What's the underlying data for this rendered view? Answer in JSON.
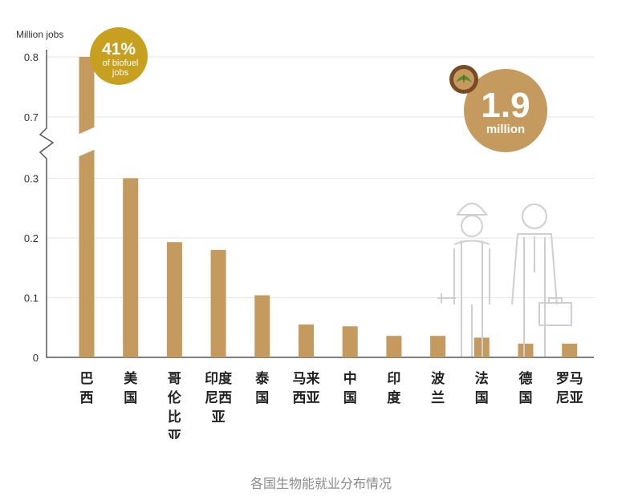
{
  "chart_data": {
    "type": "bar",
    "ylabel": "Million jobs",
    "y_ticks": [
      "0.8",
      "0.7",
      "0.3",
      "0.2",
      "0.1",
      "0"
    ],
    "y_axis_break": {
      "from": 0.3,
      "to": 0.7
    },
    "categories": [
      [
        "巴",
        "西"
      ],
      [
        "美",
        "国"
      ],
      [
        "哥",
        "伦",
        "比",
        "亚"
      ],
      [
        "印度",
        "尼西",
        "亚"
      ],
      [
        "泰",
        "国"
      ],
      [
        "马来",
        "西亚"
      ],
      [
        "中",
        "国"
      ],
      [
        "印",
        "度"
      ],
      [
        "波",
        "兰"
      ],
      [
        "法",
        "国"
      ],
      [
        "德",
        "国"
      ],
      [
        "罗马",
        "尼亚"
      ]
    ],
    "values": [
      0.8,
      0.3,
      0.193,
      0.18,
      0.104,
      0.055,
      0.052,
      0.036,
      0.036,
      0.033,
      0.023,
      0.023
    ],
    "bar_color": "#c49a5e",
    "grid": true
  },
  "badge_small": {
    "percent": "41%",
    "line1": "of biofuel",
    "line2": "jobs",
    "color": "#c8a020"
  },
  "badge_big": {
    "number": "1.9",
    "unit": "million",
    "color": "#c49a5e"
  },
  "caption": "各国生物能就业分布情况"
}
